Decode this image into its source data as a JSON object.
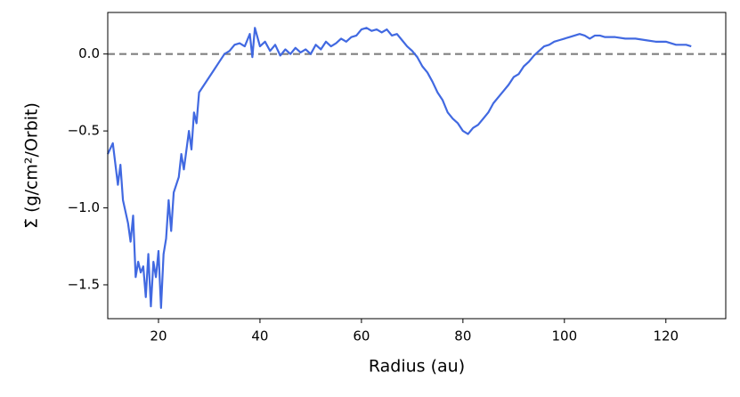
{
  "chart_data": {
    "type": "line",
    "xlabel": "Radius (au)",
    "ylabel": "Σ̇ (g/cm²/Orbit)",
    "xlim": [
      10,
      131.8
    ],
    "ylim": [
      -1.72,
      0.27
    ],
    "xticks": [
      20,
      40,
      60,
      80,
      100,
      120
    ],
    "yticks": [
      {
        "value": -1.5,
        "label": "−1.5"
      },
      {
        "value": -1.0,
        "label": "−1.0"
      },
      {
        "value": -0.5,
        "label": "−0.5"
      },
      {
        "value": 0.0,
        "label": "0.0"
      }
    ],
    "hline": 0,
    "hline_color": "#808080",
    "grid": false,
    "series": [
      {
        "color": "#4169e1",
        "x": [
          10,
          11,
          12,
          12.5,
          13,
          14,
          14.5,
          15,
          15.5,
          16,
          16.5,
          17,
          17.5,
          18,
          18.5,
          19,
          19.5,
          20,
          20.5,
          21,
          21.5,
          22,
          22.5,
          23,
          24,
          24.5,
          25,
          26,
          26.5,
          27,
          27.5,
          28,
          29,
          30,
          31,
          32,
          33,
          34,
          35,
          36,
          37,
          38,
          38.5,
          39,
          40,
          41,
          42,
          43,
          44,
          45,
          46,
          47,
          48,
          49,
          50,
          51,
          52,
          53,
          54,
          55,
          56,
          57,
          58,
          59,
          60,
          61,
          62,
          63,
          64,
          65,
          66,
          67,
          68,
          69,
          70,
          71,
          72,
          73,
          74,
          75,
          76,
          77,
          78,
          79,
          80,
          81,
          82,
          83,
          84,
          85,
          86,
          87,
          88,
          89,
          90,
          91,
          92,
          93,
          94,
          95,
          96,
          97,
          98,
          99,
          100,
          101,
          102,
          103,
          104,
          105,
          106,
          107,
          108,
          110,
          112,
          114,
          116,
          118,
          120,
          122,
          124,
          125
        ],
        "values": [
          -0.65,
          -0.58,
          -0.85,
          -0.72,
          -0.95,
          -1.1,
          -1.22,
          -1.05,
          -1.45,
          -1.35,
          -1.42,
          -1.38,
          -1.58,
          -1.3,
          -1.64,
          -1.35,
          -1.45,
          -1.28,
          -1.65,
          -1.3,
          -1.2,
          -0.95,
          -1.15,
          -0.9,
          -0.8,
          -0.65,
          -0.75,
          -0.5,
          -0.62,
          -0.38,
          -0.45,
          -0.25,
          -0.2,
          -0.15,
          -0.1,
          -0.05,
          0.0,
          0.02,
          0.06,
          0.07,
          0.05,
          0.13,
          -0.02,
          0.17,
          0.05,
          0.08,
          0.02,
          0.06,
          -0.01,
          0.03,
          0.0,
          0.04,
          0.01,
          0.03,
          0.0,
          0.06,
          0.03,
          0.08,
          0.05,
          0.07,
          0.1,
          0.08,
          0.11,
          0.12,
          0.16,
          0.17,
          0.15,
          0.16,
          0.14,
          0.16,
          0.12,
          0.13,
          0.09,
          0.05,
          0.02,
          -0.02,
          -0.08,
          -0.12,
          -0.18,
          -0.25,
          -0.3,
          -0.38,
          -0.42,
          -0.45,
          -0.5,
          -0.52,
          -0.48,
          -0.46,
          -0.42,
          -0.38,
          -0.32,
          -0.28,
          -0.24,
          -0.2,
          -0.15,
          -0.13,
          -0.08,
          -0.05,
          -0.01,
          0.02,
          0.05,
          0.06,
          0.08,
          0.09,
          0.1,
          0.11,
          0.12,
          0.13,
          0.12,
          0.1,
          0.12,
          0.12,
          0.11,
          0.11,
          0.1,
          0.1,
          0.09,
          0.08,
          0.08,
          0.06,
          0.06,
          0.05
        ]
      }
    ]
  }
}
